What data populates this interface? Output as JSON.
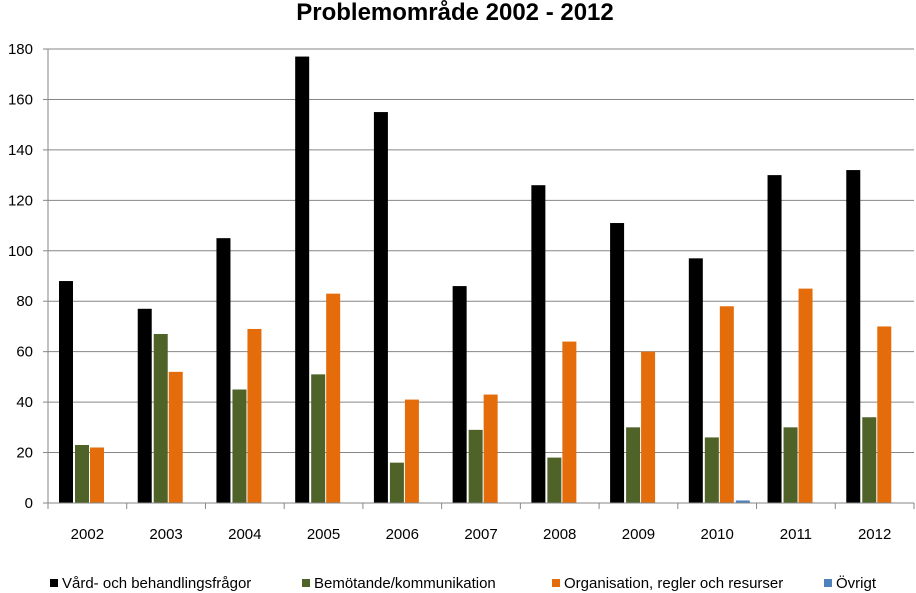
{
  "chart_data": {
    "type": "bar",
    "title": "Problemområde 2002 - 2012",
    "xlabel": "",
    "ylabel": "",
    "categories": [
      "2002",
      "2003",
      "2004",
      "2005",
      "2006",
      "2007",
      "2008",
      "2009",
      "2010",
      "2011",
      "2012"
    ],
    "series": [
      {
        "name": "Vård- och behandlingsfrågor",
        "color": "#000000",
        "values": [
          88,
          77,
          105,
          177,
          155,
          86,
          126,
          111,
          97,
          130,
          132
        ]
      },
      {
        "name": "Bemötande/kommunikation",
        "color": "#4f6228",
        "values": [
          23,
          67,
          45,
          51,
          16,
          29,
          18,
          30,
          26,
          30,
          34
        ]
      },
      {
        "name": "Organisation, regler och resurser",
        "color": "#e46c0a",
        "values": [
          22,
          52,
          69,
          83,
          41,
          43,
          64,
          60,
          78,
          85,
          70
        ]
      },
      {
        "name": "Övrigt",
        "color": "#4f81bd",
        "values": [
          0,
          0,
          0,
          0,
          0,
          0,
          0,
          0,
          1,
          0,
          0
        ]
      }
    ],
    "ylim": [
      0,
      180
    ],
    "yticks": [
      "0",
      "20",
      "40",
      "60",
      "80",
      "100",
      "120",
      "140",
      "160",
      "180"
    ],
    "grid": true,
    "legend": "bottom"
  }
}
